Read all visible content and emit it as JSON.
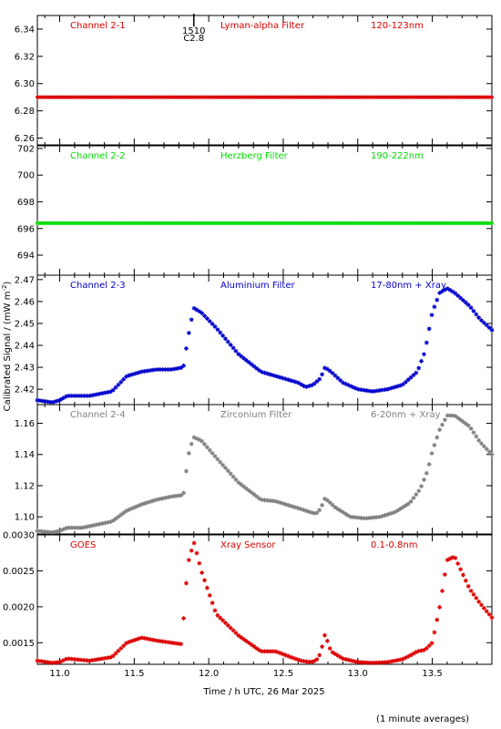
{
  "chart_data": [
    {
      "type": "scatter",
      "channel": "Channel 2-1",
      "filter": "Lyman-alpha Filter",
      "band": "120-123nm",
      "color": "#dd0000",
      "xlim": [
        10.85,
        13.9
      ],
      "ylim": [
        6.255,
        6.35
      ],
      "yticks": [
        "6.26",
        "6.28",
        "6.30",
        "6.32",
        "6.34"
      ],
      "flare_marker": {
        "x": 11.9,
        "time": "1510",
        "class": "C2.8"
      },
      "series": [
        {
          "x": [
            10.85,
            13.9
          ],
          "y": [
            6.29,
            6.29
          ],
          "form": "flat"
        }
      ]
    },
    {
      "type": "scatter",
      "channel": "Channel 2-2",
      "filter": "Herzberg Filter",
      "band": "190-222nm",
      "color": "#00dd00",
      "xlim": [
        10.85,
        13.9
      ],
      "ylim": [
        692.5,
        702.2
      ],
      "yticks": [
        "694",
        "696",
        "698",
        "700",
        "702"
      ],
      "series": [
        {
          "x": [
            10.85,
            13.9
          ],
          "y": [
            696.4,
            696.4
          ],
          "form": "flat"
        }
      ]
    },
    {
      "type": "scatter",
      "channel": "Channel 2-3",
      "filter": "Aluminium Filter",
      "band": "17-80nm + Xray",
      "color": "#0000cc",
      "xlim": [
        10.85,
        13.9
      ],
      "ylim": [
        2.413,
        2.472
      ],
      "yticks": [
        "2.42",
        "2.43",
        "2.44",
        "2.45",
        "2.46",
        "2.47"
      ],
      "series": [
        {
          "x": [
            10.85,
            10.95,
            11.0,
            11.05,
            11.2,
            11.35,
            11.45,
            11.55,
            11.65,
            11.75,
            11.83,
            11.85,
            11.87,
            11.9,
            11.95,
            12.05,
            12.2,
            12.35,
            12.5,
            12.6,
            12.65,
            12.7,
            12.75,
            12.78,
            12.82,
            12.9,
            13.0,
            13.1,
            13.2,
            13.3,
            13.4,
            13.45,
            13.5,
            13.55,
            13.6,
            13.65,
            13.75,
            13.82,
            13.9
          ],
          "y": [
            2.415,
            2.414,
            2.415,
            2.417,
            2.417,
            2.419,
            2.426,
            2.428,
            2.429,
            2.429,
            2.43,
            2.439,
            2.447,
            2.457,
            2.455,
            2.448,
            2.436,
            2.428,
            2.425,
            2.423,
            2.421,
            2.422,
            2.425,
            2.43,
            2.428,
            2.423,
            2.42,
            2.419,
            2.42,
            2.422,
            2.428,
            2.437,
            2.455,
            2.464,
            2.466,
            2.464,
            2.458,
            2.452,
            2.447
          ]
        }
      ]
    },
    {
      "type": "scatter",
      "channel": "Channel 2-4",
      "filter": "Zirconium Filter",
      "band": "6-20nm + Xray",
      "color": "#808080",
      "xlim": [
        10.85,
        13.9
      ],
      "ylim": [
        1.089,
        1.172
      ],
      "yticks": [
        "1.10",
        "1.12",
        "1.14",
        "1.16"
      ],
      "series": [
        {
          "x": [
            10.85,
            10.95,
            11.0,
            11.05,
            11.15,
            11.35,
            11.45,
            11.55,
            11.65,
            11.75,
            11.83,
            11.85,
            11.87,
            11.9,
            11.95,
            12.05,
            12.2,
            12.35,
            12.45,
            12.55,
            12.62,
            12.68,
            12.72,
            12.75,
            12.78,
            12.85,
            12.95,
            13.05,
            13.15,
            13.25,
            13.35,
            13.42,
            13.47,
            13.5,
            13.55,
            13.6,
            13.65,
            13.75,
            13.82,
            13.9
          ],
          "y": [
            1.091,
            1.09,
            1.091,
            1.093,
            1.093,
            1.097,
            1.104,
            1.108,
            1.111,
            1.113,
            1.114,
            1.13,
            1.143,
            1.151,
            1.149,
            1.138,
            1.122,
            1.111,
            1.11,
            1.107,
            1.105,
            1.103,
            1.102,
            1.105,
            1.112,
            1.106,
            1.1,
            1.099,
            1.1,
            1.103,
            1.109,
            1.118,
            1.13,
            1.142,
            1.156,
            1.165,
            1.165,
            1.158,
            1.148,
            1.14
          ]
        }
      ]
    },
    {
      "type": "scatter",
      "channel": "GOES",
      "filter": "Xray Sensor",
      "band": "0.1-0.8nm",
      "color": "#dd0000",
      "xlim": [
        10.85,
        13.9
      ],
      "ylim": [
        0.0012,
        0.003
      ],
      "yticks": [
        "0.0015",
        "0.0020",
        "0.0025",
        "0.0030"
      ],
      "series": [
        {
          "x": [
            10.85,
            10.95,
            11.0,
            11.05,
            11.2,
            11.35,
            11.45,
            11.55,
            11.65,
            11.75,
            11.82,
            11.84,
            11.86,
            11.9,
            11.95,
            12.05,
            12.2,
            12.35,
            12.45,
            12.55,
            12.62,
            12.68,
            12.72,
            12.75,
            12.78,
            12.82,
            12.9,
            13.0,
            13.1,
            13.2,
            13.3,
            13.35,
            13.4,
            13.45,
            13.5,
            13.55,
            13.6,
            13.65,
            13.75,
            13.82,
            13.9
          ],
          "y": [
            0.00125,
            0.00122,
            0.00123,
            0.00128,
            0.00125,
            0.0013,
            0.0015,
            0.00157,
            0.00153,
            0.0015,
            0.00148,
            0.0021,
            0.0026,
            0.0029,
            0.0025,
            0.0019,
            0.0016,
            0.00138,
            0.00138,
            0.0013,
            0.00125,
            0.00123,
            0.00125,
            0.00135,
            0.00162,
            0.00138,
            0.00128,
            0.00123,
            0.00122,
            0.00123,
            0.00127,
            0.00132,
            0.00138,
            0.0014,
            0.0015,
            0.002,
            0.00265,
            0.0027,
            0.00225,
            0.00205,
            0.00185
          ]
        }
      ]
    }
  ],
  "axes": {
    "xticks": [
      "11.0",
      "11.5",
      "12.0",
      "12.5",
      "13.0",
      "13.5"
    ],
    "xlabel": "Time / h UTC, 26 Mar 2025",
    "ylabel_text": "Calibrated Signal / (mW m",
    "ylabel_sup": "-2",
    "ylabel_close": ")"
  },
  "footnote": "(1 minute averages)"
}
